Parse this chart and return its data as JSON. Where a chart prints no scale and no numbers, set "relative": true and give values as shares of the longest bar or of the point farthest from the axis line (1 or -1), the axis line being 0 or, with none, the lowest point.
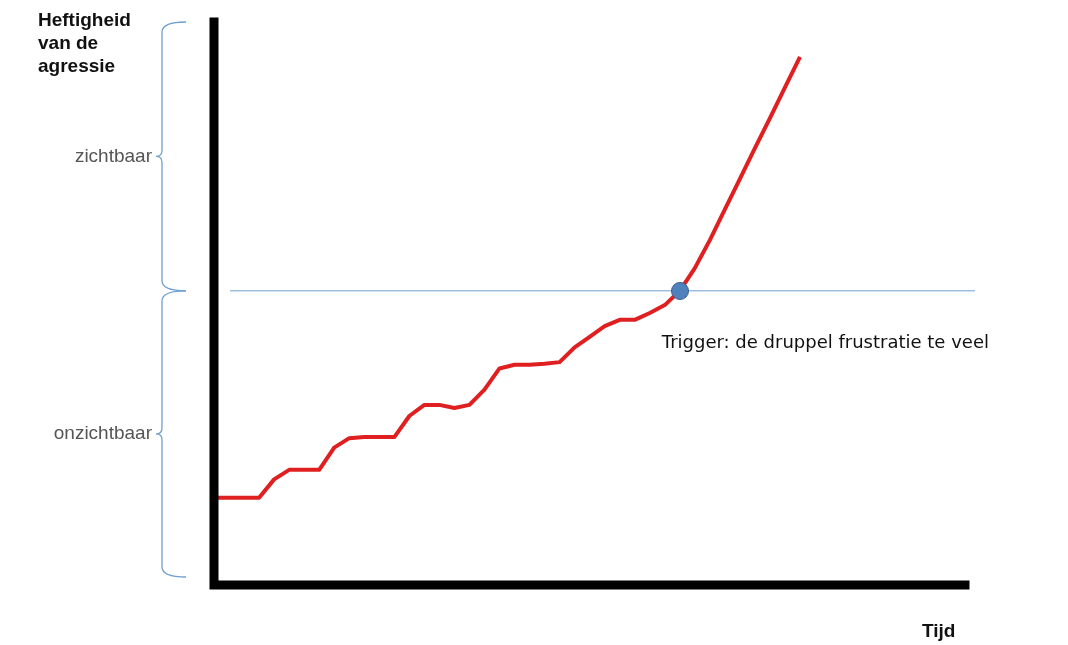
{
  "chart_data": {
    "type": "line",
    "relative": true,
    "ylabel": "Heftigheid van de agressie",
    "categories": [
      null,
      null,
      null,
      null,
      null,
      null,
      null,
      null,
      null,
      null,
      null,
      null,
      null,
      null,
      null,
      null,
      null,
      null,
      null,
      null,
      null,
      null,
      null,
      null,
      null,
      null,
      null,
      null,
      null,
      null,
      null,
      null,
      null,
      null,
      null,
      null,
      null,
      null,
      null,
      null
    ],
    "series": [
      {
        "color": "#e02020",
        "values": [
          0.165,
          0.165,
          0.165,
          0.165,
          0.2,
          0.218,
          0.218,
          0.218,
          0.26,
          0.278,
          0.28,
          0.28,
          0.28,
          0.32,
          0.341,
          0.341,
          0.335,
          0.341,
          0.37,
          0.41,
          0.417,
          0.417,
          0.419,
          0.422,
          0.45,
          0.47,
          0.49,
          0.502,
          0.502,
          0.515,
          0.53,
          0.557,
          0.6,
          0.653,
          0.711,
          0.769,
          0.827,
          0.884,
          0.942,
          1.0
        ]
      }
    ],
    "ref_lines": [
      {
        "axis": "y",
        "value": 0.557,
        "color": "#6f9fd0"
      }
    ],
    "annotations": [
      "zichtbaar",
      "onzichtbaar",
      "Trigger: de druppel frustratie te veel",
      "Tijd"
    ]
  }
}
